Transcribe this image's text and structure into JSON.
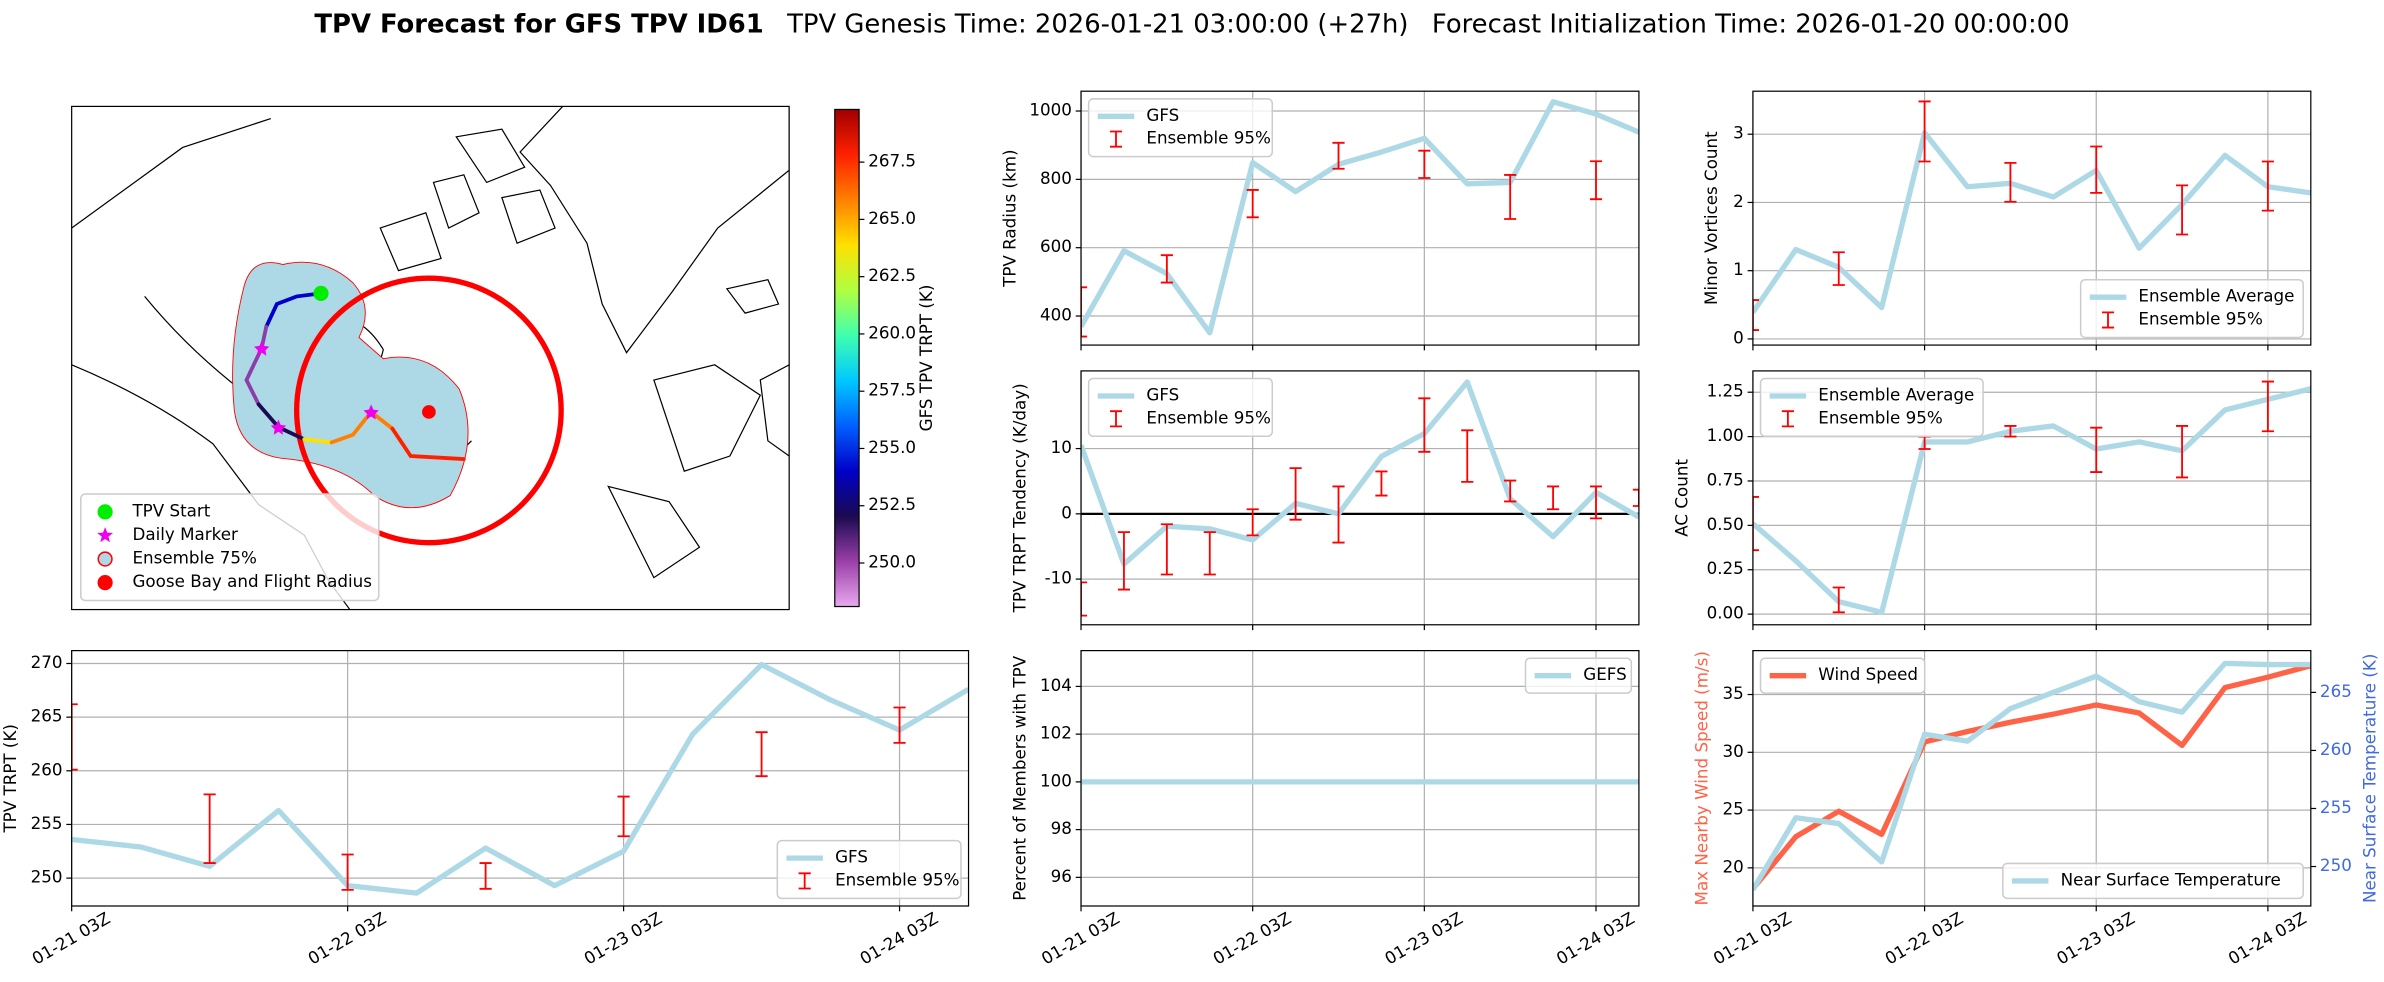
{
  "suptitle": {
    "main": "TPV Forecast for GFS TPV ID61",
    "genesis": "TPV Genesis Time: 2026-01-21 03:00:00 (+27h)",
    "init": "Forecast Initialization Time: 2026-01-20 00:00:00"
  },
  "chart_data": [
    {
      "type": "map",
      "legend": [
        "TPV Start",
        "Daily Marker",
        "Ensemble 75%",
        "Goose Bay and Flight Radius"
      ],
      "legend_markers": [
        "circle",
        "star",
        "circle",
        "circle"
      ],
      "legend_colors": [
        "#00ee00",
        "#ee00ee",
        "#add8e6",
        "#ff0000"
      ],
      "legend_edge_colors": [
        "#00ee00",
        "#ee00ee",
        "#ff0000",
        "#ff0000"
      ],
      "legend_loc": "lower left",
      "colorbar": {
        "label": "GFS TPV TRPT (K)",
        "lim": [
          248.1,
          269.8
        ],
        "ticks": [
          {
            "value": 250,
            "label": "250.0"
          },
          {
            "value": 252.5,
            "label": "252.5"
          },
          {
            "value": 255,
            "label": "255.0"
          },
          {
            "value": 257.5,
            "label": "257.5"
          },
          {
            "value": 260,
            "label": "260.0"
          },
          {
            "value": 262.5,
            "label": "262.5"
          },
          {
            "value": 265,
            "label": "265.0"
          },
          {
            "value": 267.5,
            "label": "267.5"
          }
        ],
        "colors": [
          "#e8a8ee",
          "#9a3fa8",
          "#1a0a50",
          "#0000c8",
          "#0060ff",
          "#00c8ff",
          "#40ffb0",
          "#b0ff40",
          "#ffe000",
          "#ff8000",
          "#ff2000",
          "#a00000"
        ]
      }
    },
    {
      "type": "line",
      "ylabel": "TPV Radius (km)",
      "grid": true,
      "xticklabels": false,
      "legend_loc": "upper left",
      "x": [
        "01-21 03Z",
        "01-21 09Z",
        "01-21 15Z",
        "01-21 21Z",
        "01-22 03Z",
        "01-22 09Z",
        "01-22 15Z",
        "01-22 21Z",
        "01-23 03Z",
        "01-23 09Z",
        "01-23 15Z",
        "01-23 21Z",
        "01-24 03Z",
        "01-24 09Z"
      ],
      "xlim": [
        "01-21 03Z",
        "01-24 09Z"
      ],
      "xticks": [
        "01-21 03Z",
        "01-22 03Z",
        "01-23 03Z",
        "01-24 03Z"
      ],
      "ylim": [
        315,
        1058
      ],
      "yticks": [
        400,
        600,
        800,
        1000
      ],
      "series": [
        {
          "name": "GFS",
          "color": "#add8e6",
          "values": [
            369,
            591,
            524,
            351,
            849,
            764,
            844,
            880,
            920,
            787,
            791,
            1027,
            991,
            938
          ]
        }
      ],
      "error_bars": {
        "name": "Ensemble 95%",
        "color": "#ff0000",
        "x": [
          "01-21 03Z",
          "01-21 15Z",
          "01-22 03Z",
          "01-22 15Z",
          "01-23 03Z",
          "01-23 15Z",
          "01-24 03Z"
        ],
        "low": [
          340,
          498,
          689,
          831,
          804,
          684,
          742
        ],
        "high": [
          484,
          578,
          769,
          907,
          884,
          813,
          853
        ]
      }
    },
    {
      "type": "line",
      "ylabel": "TPV TRPT Tendency (K/day)",
      "grid": true,
      "xticklabels": false,
      "legend_loc": "upper left",
      "hline": 0,
      "x": [
        "01-21 03Z",
        "01-21 09Z",
        "01-21 15Z",
        "01-21 21Z",
        "01-22 03Z",
        "01-22 09Z",
        "01-22 15Z",
        "01-22 21Z",
        "01-23 03Z",
        "01-23 09Z",
        "01-23 15Z",
        "01-23 21Z",
        "01-24 03Z",
        "01-24 09Z"
      ],
      "xlim": [
        "01-21 03Z",
        "01-24 09Z"
      ],
      "xticks": [
        "01-21 03Z",
        "01-22 03Z",
        "01-23 03Z",
        "01-24 03Z"
      ],
      "ylim": [
        -17,
        21.9
      ],
      "yticks": [
        -10,
        0,
        10
      ],
      "series": [
        {
          "name": "GFS",
          "color": "#add8e6",
          "values": [
            10.5,
            -7.7,
            -1.9,
            -2.3,
            -4,
            1.6,
            0,
            8.8,
            12.3,
            20.2,
            2.3,
            -3.5,
            3.3,
            -0.5
          ]
        }
      ],
      "error_bars": {
        "name": "Ensemble 95%",
        "color": "#ff0000",
        "x": [
          "01-21 03Z",
          "01-21 09Z",
          "01-21 15Z",
          "01-21 21Z",
          "01-22 03Z",
          "01-22 09Z",
          "01-22 15Z",
          "01-22 21Z",
          "01-23 03Z",
          "01-23 09Z",
          "01-23 15Z",
          "01-23 21Z",
          "01-24 03Z",
          "01-24 09Z"
        ],
        "low": [
          -15.6,
          -11.6,
          -9.3,
          -9.3,
          -3.3,
          -0.9,
          -4.4,
          2.8,
          9.5,
          4.9,
          1.9,
          0.7,
          -0.7,
          1.2
        ],
        "high": [
          -10.5,
          -2.8,
          -1.6,
          -2.8,
          0.7,
          7.0,
          4.2,
          6.5,
          17.7,
          12.8,
          5.1,
          4.2,
          4.2,
          3.7
        ]
      }
    },
    {
      "type": "line",
      "ylabel": "Percent of Members with TPV",
      "grid": true,
      "xticklabels": true,
      "legend_loc": "upper right",
      "x": [
        "01-21 03Z",
        "01-21 09Z",
        "01-21 15Z",
        "01-21 21Z",
        "01-22 03Z",
        "01-22 09Z",
        "01-22 15Z",
        "01-22 21Z",
        "01-23 03Z",
        "01-23 09Z",
        "01-23 15Z",
        "01-23 21Z",
        "01-24 03Z",
        "01-24 09Z"
      ],
      "xlim": [
        "01-21 03Z",
        "01-24 09Z"
      ],
      "xticks": [
        "01-21 03Z",
        "01-22 03Z",
        "01-23 03Z",
        "01-24 03Z"
      ],
      "ylim": [
        94.8,
        105.5
      ],
      "yticks": [
        96,
        98,
        100,
        102,
        104
      ],
      "series": [
        {
          "name": "GEFS",
          "color": "#add8e6",
          "values": [
            100,
            100,
            100,
            100,
            100,
            100,
            100,
            100,
            100,
            100,
            100,
            100,
            100,
            100
          ]
        }
      ]
    },
    {
      "type": "line",
      "ylabel": "Minor Vortices Count",
      "grid": true,
      "xticklabels": false,
      "legend_loc": "lower right",
      "x": [
        "01-21 03Z",
        "01-21 09Z",
        "01-21 15Z",
        "01-21 21Z",
        "01-22 03Z",
        "01-22 09Z",
        "01-22 15Z",
        "01-22 21Z",
        "01-23 03Z",
        "01-23 09Z",
        "01-23 15Z",
        "01-23 21Z",
        "01-24 03Z",
        "01-24 09Z"
      ],
      "xlim": [
        "01-21 03Z",
        "01-24 09Z"
      ],
      "xticks": [
        "01-21 03Z",
        "01-22 03Z",
        "01-23 03Z",
        "01-24 03Z"
      ],
      "ylim": [
        -0.09,
        3.63
      ],
      "yticks": [
        0,
        1,
        2,
        3
      ],
      "series": [
        {
          "name": "Ensemble Average",
          "color": "#add8e6",
          "values": [
            0.39,
            1.31,
            1.05,
            0.46,
            3.02,
            2.23,
            2.28,
            2.08,
            2.47,
            1.33,
            1.97,
            2.69,
            2.23,
            2.14
          ]
        }
      ],
      "error_bars": {
        "name": "Ensemble 95%",
        "color": "#ff0000",
        "x": [
          "01-21 03Z",
          "01-21 15Z",
          "01-22 03Z",
          "01-22 15Z",
          "01-23 03Z",
          "01-23 15Z",
          "01-24 03Z"
        ],
        "low": [
          0.13,
          0.79,
          2.6,
          2.01,
          2.14,
          1.53,
          1.88
        ],
        "high": [
          0.57,
          1.27,
          3.48,
          2.58,
          2.82,
          2.25,
          2.6
        ]
      }
    },
    {
      "type": "line",
      "ylabel": "AC Count",
      "grid": true,
      "xticklabels": false,
      "legend_loc": "upper left",
      "x": [
        "01-21 03Z",
        "01-21 09Z",
        "01-21 15Z",
        "01-21 21Z",
        "01-22 03Z",
        "01-22 09Z",
        "01-22 15Z",
        "01-22 21Z",
        "01-23 03Z",
        "01-23 09Z",
        "01-23 15Z",
        "01-23 21Z",
        "01-24 03Z",
        "01-24 09Z"
      ],
      "xlim": [
        "01-21 03Z",
        "01-24 09Z"
      ],
      "xticks": [
        "01-21 03Z",
        "01-22 03Z",
        "01-23 03Z",
        "01-24 03Z"
      ],
      "ylim": [
        -0.06,
        1.37
      ],
      "yticks": [
        {
          "value": 0,
          "label": "0.00"
        },
        {
          "value": 0.25,
          "label": "0.25"
        },
        {
          "value": 0.5,
          "label": "0.50"
        },
        {
          "value": 0.75,
          "label": "0.75"
        },
        {
          "value": 1,
          "label": "1.00"
        },
        {
          "value": 1.25,
          "label": "1.25"
        }
      ],
      "series": [
        {
          "name": "Ensemble Average",
          "color": "#add8e6",
          "values": [
            0.51,
            0.3,
            0.07,
            0.01,
            0.97,
            0.97,
            1.03,
            1.06,
            0.93,
            0.97,
            0.92,
            1.15,
            1.21,
            1.27
          ]
        }
      ],
      "error_bars": {
        "name": "Ensemble 95%",
        "color": "#ff0000",
        "x": [
          "01-21 03Z",
          "01-21 15Z",
          "01-22 03Z",
          "01-22 15Z",
          "01-23 03Z",
          "01-23 15Z",
          "01-24 03Z"
        ],
        "low": [
          0.36,
          0.01,
          0.93,
          1.0,
          0.8,
          0.77,
          1.03
        ],
        "high": [
          0.66,
          0.15,
          1.0,
          1.06,
          1.05,
          1.06,
          1.31
        ]
      }
    },
    {
      "type": "line",
      "ylabel": "TPV TRPT (K)",
      "grid": true,
      "xticklabels": true,
      "legend_loc": "lower right",
      "x": [
        "01-21 03Z",
        "01-21 09Z",
        "01-21 15Z",
        "01-21 21Z",
        "01-22 03Z",
        "01-22 09Z",
        "01-22 15Z",
        "01-22 21Z",
        "01-23 03Z",
        "01-23 09Z",
        "01-23 15Z",
        "01-23 21Z",
        "01-24 03Z",
        "01-24 09Z"
      ],
      "xlim": [
        "01-21 03Z",
        "01-24 09Z"
      ],
      "xticks": [
        "01-21 03Z",
        "01-22 03Z",
        "01-23 03Z",
        "01-24 03Z"
      ],
      "ylim": [
        247.4,
        271.2
      ],
      "yticks": [
        250,
        255,
        260,
        265,
        270
      ],
      "series": [
        {
          "name": "GFS",
          "color": "#add8e6",
          "values": [
            253.6,
            252.9,
            251.1,
            256.3,
            249.3,
            248.6,
            252.8,
            249.3,
            252.5,
            263.4,
            269.9,
            266.6,
            263.8,
            267.6
          ]
        }
      ],
      "error_bars": {
        "name": "Ensemble 95%",
        "color": "#ff0000",
        "x": [
          "01-21 03Z",
          "01-21 15Z",
          "01-22 03Z",
          "01-22 15Z",
          "01-23 03Z",
          "01-23 15Z",
          "01-24 03Z"
        ],
        "low": [
          260.1,
          251.4,
          248.9,
          249,
          253.9,
          259.5,
          262.6
        ],
        "high": [
          266.2,
          257.8,
          252.2,
          251.4,
          257.6,
          263.6,
          265.9
        ]
      }
    },
    {
      "type": "line",
      "ylabel": "Max Nearby Wind Speed (m/s)",
      "ylabel_color": "#ff6347",
      "y2label": "Near Surface Temperature (K)",
      "y2label_color": "#4169e1",
      "y2tick_color": "#4169e1",
      "grid": true,
      "xticklabels": true,
      "x": [
        "01-21 03Z",
        "01-21 09Z",
        "01-21 15Z",
        "01-21 21Z",
        "01-22 03Z",
        "01-22 09Z",
        "01-22 15Z",
        "01-22 21Z",
        "01-23 03Z",
        "01-23 09Z",
        "01-23 15Z",
        "01-23 21Z",
        "01-24 03Z",
        "01-24 09Z"
      ],
      "xlim": [
        "01-21 03Z",
        "01-24 09Z"
      ],
      "xticks": [
        "01-21 03Z",
        "01-22 03Z",
        "01-23 03Z",
        "01-24 03Z"
      ],
      "ylim": [
        16.7,
        38.8
      ],
      "yticks": [
        20,
        25,
        30,
        35
      ],
      "y2lim": [
        246.6,
        268.6
      ],
      "y2ticks": [
        250,
        255,
        260,
        265
      ],
      "series": [
        {
          "name": "Wind Speed",
          "color": "#ff6347",
          "legend_loc": "upper left",
          "values": [
            18.2,
            22.7,
            24.9,
            22.9,
            30.9,
            31.8,
            32.6,
            33.3,
            34.1,
            33.4,
            30.6,
            35.6,
            36.5,
            37.5
          ]
        },
        {
          "name": "Near Surface Temperature",
          "color": "#add8e6",
          "axis": "y2",
          "legend_loc": "lower right",
          "values": [
            248.0,
            254.2,
            253.7,
            250.4,
            261.4,
            260.8,
            263.6,
            265.0,
            266.4,
            264.2,
            263.3,
            267.5,
            267.4,
            267.4
          ]
        }
      ]
    }
  ]
}
